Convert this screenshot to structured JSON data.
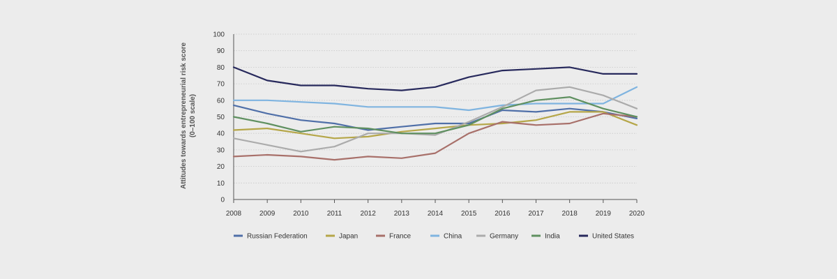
{
  "chart_data": {
    "type": "line",
    "title": "",
    "xlabel": "",
    "ylabel": "Attitudes towards entrepreneurial risk score",
    "ylabel_sub": "(0–100 scale)",
    "ylim": [
      0,
      100
    ],
    "yticks": [
      0,
      10,
      20,
      30,
      40,
      50,
      60,
      70,
      80,
      90,
      100
    ],
    "x": [
      "2008",
      "2009",
      "2010",
      "2011",
      "2012",
      "2013",
      "2014",
      "2015",
      "2016",
      "2017",
      "2018",
      "2019",
      "2020"
    ],
    "grid": true,
    "legend_position": "bottom",
    "series": [
      {
        "name": "Russian Federation",
        "color": "#4f6fa8",
        "values": [
          57,
          52,
          48,
          46,
          42,
          44,
          46,
          46,
          54,
          53,
          55,
          53,
          49
        ]
      },
      {
        "name": "Japan",
        "color": "#b5a648",
        "values": [
          42,
          43,
          40,
          37,
          38,
          41,
          43,
          45,
          46,
          48,
          53,
          53,
          45
        ]
      },
      {
        "name": "France",
        "color": "#a8706a",
        "values": [
          26,
          27,
          26,
          24,
          26,
          25,
          28,
          40,
          47,
          45,
          46,
          52,
          50
        ]
      },
      {
        "name": "China",
        "color": "#7fb4e0",
        "values": [
          60,
          60,
          59,
          58,
          56,
          56,
          56,
          54,
          57,
          58,
          58,
          58,
          68
        ]
      },
      {
        "name": "Germany",
        "color": "#ababab",
        "values": [
          37,
          33,
          29,
          32,
          40,
          40,
          39,
          47,
          56,
          66,
          68,
          63,
          55
        ]
      },
      {
        "name": "India",
        "color": "#5f9060",
        "values": [
          50,
          46,
          41,
          44,
          43,
          40,
          40,
          45,
          55,
          60,
          62,
          55,
          50
        ]
      },
      {
        "name": "United States",
        "color": "#27295c",
        "values": [
          80,
          72,
          69,
          69,
          67,
          66,
          68,
          74,
          78,
          79,
          80,
          76,
          76
        ]
      }
    ]
  }
}
